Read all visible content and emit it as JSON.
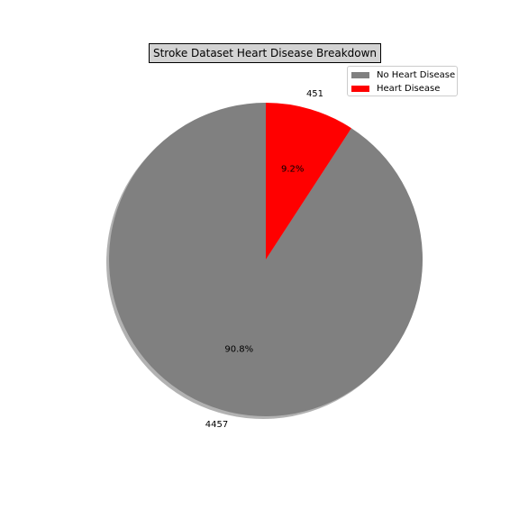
{
  "chart_data": {
    "type": "pie",
    "title": "Stroke Dataset Heart Disease Breakdown",
    "slices": [
      {
        "label": "No Heart Disease",
        "value": 4457,
        "percent_label": "90.8%",
        "color": "#808080"
      },
      {
        "label": "Heart Disease",
        "value": 451,
        "percent_label": "9.2%",
        "color": "#ff0000"
      }
    ],
    "start_angle_deg": 90,
    "direction": "counterclockwise",
    "shadow": true,
    "legend_position": "top-right"
  }
}
